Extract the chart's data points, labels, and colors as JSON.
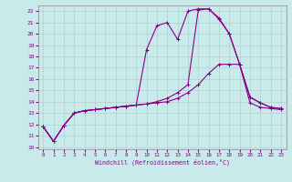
{
  "xlabel": "Windchill (Refroidissement éolien,°C)",
  "background_color": "#c8eaea",
  "grid_color": "#b0c8c8",
  "line_color": "#880088",
  "xlim": [
    -0.5,
    23.5
  ],
  "ylim": [
    9.8,
    22.5
  ],
  "xticks": [
    0,
    1,
    2,
    3,
    4,
    5,
    6,
    7,
    8,
    9,
    10,
    11,
    12,
    13,
    14,
    15,
    16,
    17,
    18,
    19,
    20,
    21,
    22,
    23
  ],
  "yticks": [
    10,
    11,
    12,
    13,
    14,
    15,
    16,
    17,
    18,
    19,
    20,
    21,
    22
  ],
  "line1_x": [
    0,
    1,
    2,
    3,
    4,
    5,
    6,
    7,
    8,
    9,
    10,
    11,
    12,
    13,
    14,
    15,
    16,
    17,
    18,
    19,
    20,
    21,
    22,
    23
  ],
  "line1_y": [
    11.8,
    10.5,
    11.9,
    13.0,
    13.2,
    13.3,
    13.4,
    13.5,
    13.6,
    13.7,
    13.8,
    13.9,
    14.0,
    14.3,
    14.8,
    15.5,
    16.5,
    17.3,
    17.3,
    17.3,
    14.4,
    13.9,
    13.5,
    13.4
  ],
  "line2_x": [
    0,
    1,
    2,
    3,
    4,
    5,
    6,
    7,
    8,
    9,
    10,
    11,
    12,
    13,
    14,
    15,
    16,
    17,
    18,
    19,
    20,
    21,
    22,
    23
  ],
  "line2_y": [
    11.8,
    10.5,
    11.9,
    13.0,
    13.2,
    13.3,
    13.4,
    13.5,
    13.6,
    13.7,
    18.6,
    20.7,
    21.0,
    19.5,
    22.0,
    22.2,
    22.2,
    21.3,
    20.0,
    17.3,
    13.9,
    13.5,
    13.4,
    13.3
  ],
  "line3_x": [
    0,
    1,
    2,
    3,
    4,
    5,
    6,
    7,
    8,
    9,
    10,
    11,
    12,
    13,
    14,
    15,
    16,
    17,
    18,
    19,
    20,
    21,
    22,
    23
  ],
  "line3_y": [
    11.8,
    10.5,
    11.9,
    13.0,
    13.2,
    13.3,
    13.4,
    13.5,
    13.6,
    13.7,
    13.8,
    14.0,
    14.3,
    14.8,
    15.5,
    22.1,
    22.2,
    21.4,
    20.0,
    17.3,
    14.4,
    13.9,
    13.5,
    13.4
  ]
}
